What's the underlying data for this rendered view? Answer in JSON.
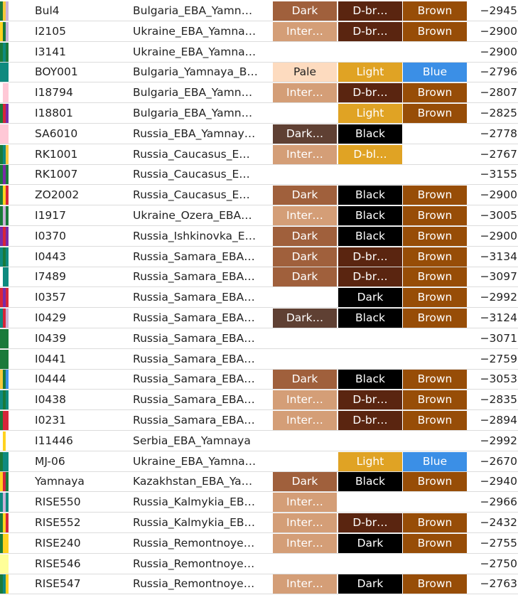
{
  "colors": {
    "Dark_skin": "#a0603c",
    "Inter": "#d49e77",
    "Pale": "#fddbbf",
    "Dark_very": "#5f4033",
    "D-br": "#5a2510",
    "Light": "#e0a324",
    "D-bl": "#e0a324",
    "Black": "#000000",
    "Dark_hair": "#000000",
    "Brown": "#974d07",
    "Blue": "#3b8fe6"
  },
  "rows": [
    {
      "id": "Bul4",
      "population": "Bulgaria_EBA_Yamn…",
      "skin": "Dark",
      "skin_color": "#a0603c",
      "hair": "D-br…",
      "hair_color": "#5a2510",
      "eye": "Brown",
      "eye_color": "#974d07",
      "date": "−2945",
      "strip": [
        "#1a7a3a",
        "#f7c83c",
        "#c9b1d8"
      ]
    },
    {
      "id": "I2105",
      "population": "Ukraine_EBA_Yamna…",
      "skin": "Inter…",
      "skin_color": "#d49e77",
      "hair": "D-br…",
      "hair_color": "#5a2510",
      "eye": "Brown",
      "eye_color": "#974d07",
      "date": "−2900",
      "strip": [
        "#ffd21f",
        "#1a7a3a",
        "#c9b1d8"
      ]
    },
    {
      "id": "I3141",
      "population": "Ukraine_EBA_Yamna…",
      "skin": "",
      "skin_color": "",
      "hair": "",
      "hair_color": "",
      "eye": "",
      "eye_color": "",
      "date": "−2900",
      "strip": [
        "#1a7a3a",
        "#0e8a7f",
        "#1a7a3a"
      ]
    },
    {
      "id": "BOY001",
      "population": "Bulgaria_Yamnaya_B…",
      "skin": "Pale",
      "skin_color": "#fddbbf",
      "hair": "Light",
      "hair_color": "#e0a324",
      "eye": "Blue",
      "eye_color": "#3b8fe6",
      "date": "−2796",
      "strip": [
        "#0e8a7f",
        "#0e8a7f",
        "#0e8a7f"
      ]
    },
    {
      "id": "I18794",
      "population": "Bulgaria_EBA_Yamn…",
      "skin": "Inter…",
      "skin_color": "#d49e77",
      "hair": "D-br…",
      "hair_color": "#5a2510",
      "eye": "Brown",
      "eye_color": "#974d07",
      "date": "−2807",
      "strip": [
        "#ffffff",
        "#ffc8d6",
        "#ffc8d6"
      ]
    },
    {
      "id": "I18801",
      "population": "Bulgaria_EBA_Yamn…",
      "skin": "",
      "skin_color": "",
      "hair": "Light",
      "hair_color": "#e0a324",
      "eye": "Brown",
      "eye_color": "#974d07",
      "date": "−2825",
      "strip": [
        "#1a7a3a",
        "#d6263a",
        "#7a2aa8"
      ]
    },
    {
      "id": "SA6010",
      "population": "Russia_EBA_Yamnay…",
      "skin": "Dark…",
      "skin_color": "#5f4033",
      "hair": "Black",
      "hair_color": "#000000",
      "eye": "",
      "eye_color": "",
      "date": "−2778",
      "strip": [
        "#ffc8d6",
        "#ffc8d6",
        "#ffc8d6"
      ]
    },
    {
      "id": "RK1001",
      "population": "Russia_Caucasus_E…",
      "skin": "Inter…",
      "skin_color": "#d49e77",
      "hair": "D-bl…",
      "hair_color": "#e0a324",
      "eye": "",
      "eye_color": "",
      "date": "−2767",
      "strip": [
        "#1a7a3a",
        "#0e8a7f",
        "#f7c83c"
      ]
    },
    {
      "id": "RK1007",
      "population": "Russia_Caucasus_E…",
      "skin": "",
      "skin_color": "",
      "hair": "",
      "hair_color": "",
      "eye": "",
      "eye_color": "",
      "date": "−3155",
      "strip": [
        "#1a7a3a",
        "#7a2aa8",
        "#1a7a3a"
      ]
    },
    {
      "id": "ZO2002",
      "population": "Russia_Caucasus_E…",
      "skin": "Dark",
      "skin_color": "#a0603c",
      "hair": "Black",
      "hair_color": "#000000",
      "eye": "Brown",
      "eye_color": "#974d07",
      "date": "−2900",
      "strip": [
        "#1a7a3a",
        "#ffd21f",
        "#d6263a"
      ]
    },
    {
      "id": "I1917",
      "population": "Ukraine_Ozera_EBA…",
      "skin": "Inter…",
      "skin_color": "#d49e77",
      "hair": "Black",
      "hair_color": "#000000",
      "eye": "Brown",
      "eye_color": "#974d07",
      "date": "−3005",
      "strip": [
        "#1a7a3a",
        "#c9b1d8",
        "#1a7a3a"
      ]
    },
    {
      "id": "I0370",
      "population": "Russia_Ishkinovka_E…",
      "skin": "Dark",
      "skin_color": "#a0603c",
      "hair": "Black",
      "hair_color": "#000000",
      "eye": "Brown",
      "eye_color": "#974d07",
      "date": "−2900",
      "strip": [
        "#7a2aa8",
        "#d6263a",
        "#7a2aa8"
      ]
    },
    {
      "id": "I0443",
      "population": "Russia_Samara_EBA…",
      "skin": "Dark",
      "skin_color": "#a0603c",
      "hair": "D-br…",
      "hair_color": "#5a2510",
      "eye": "Brown",
      "eye_color": "#974d07",
      "date": "−3134",
      "strip": [
        "#0e8a7f",
        "#1a7a3a",
        "#0e8a7f"
      ]
    },
    {
      "id": "I7489",
      "population": "Russia_Samara_EBA…",
      "skin": "Dark",
      "skin_color": "#a0603c",
      "hair": "D-br…",
      "hair_color": "#5a2510",
      "eye": "Brown",
      "eye_color": "#974d07",
      "date": "−3097",
      "strip": [
        "#ffffff",
        "#0e8a7f",
        "#0e8a7f"
      ]
    },
    {
      "id": "I0357",
      "population": "Russia_Samara_EBA…",
      "skin": "",
      "skin_color": "",
      "hair": "Dark",
      "hair_color": "#000000",
      "eye": "Brown",
      "eye_color": "#974d07",
      "date": "−2992",
      "strip": [
        "#d6263a",
        "#7a2aa8",
        "#d6263a"
      ]
    },
    {
      "id": "I0429",
      "population": "Russia_Samara_EBA…",
      "skin": "Dark…",
      "skin_color": "#5f4033",
      "hair": "Black",
      "hair_color": "#000000",
      "eye": "Brown",
      "eye_color": "#974d07",
      "date": "−3124",
      "strip": [
        "#0e8a7f",
        "#d6263a",
        "#c9b1d8"
      ]
    },
    {
      "id": "I0439",
      "population": "Russia_Samara_EBA…",
      "skin": "",
      "skin_color": "",
      "hair": "",
      "hair_color": "",
      "eye": "",
      "eye_color": "",
      "date": "−3071",
      "strip": [
        "#1a7a3a",
        "#1a7a3a",
        "#1a7a3a"
      ]
    },
    {
      "id": "I0441",
      "population": "Russia_Samara_EBA…",
      "skin": "",
      "skin_color": "",
      "hair": "",
      "hair_color": "",
      "eye": "",
      "eye_color": "",
      "date": "−2759",
      "strip": [
        "#1a7a3a",
        "#1a7a3a",
        "#1a7a3a"
      ]
    },
    {
      "id": "I0444",
      "population": "Russia_Samara_EBA…",
      "skin": "Dark",
      "skin_color": "#a0603c",
      "hair": "Black",
      "hair_color": "#000000",
      "eye": "Brown",
      "eye_color": "#974d07",
      "date": "−3053",
      "strip": [
        "#f7c83c",
        "#1a7a3a",
        "#3b8fe6"
      ]
    },
    {
      "id": "I0438",
      "population": "Russia_Samara_EBA…",
      "skin": "Inter…",
      "skin_color": "#d49e77",
      "hair": "D-br…",
      "hair_color": "#5a2510",
      "eye": "Brown",
      "eye_color": "#974d07",
      "date": "−2835",
      "strip": [
        "#0e8a7f",
        "#1a7a3a",
        "#0e8a7f"
      ]
    },
    {
      "id": "I0231",
      "population": "Russia_Samara_EBA…",
      "skin": "Inter…",
      "skin_color": "#d49e77",
      "hair": "D-br…",
      "hair_color": "#5a2510",
      "eye": "Brown",
      "eye_color": "#974d07",
      "date": "−2894",
      "strip": [
        "#1a7a3a",
        "#d6263a",
        "#d6263a"
      ]
    },
    {
      "id": "I11446",
      "population": "Serbia_EBA_Yamnaya",
      "skin": "",
      "skin_color": "",
      "hair": "",
      "hair_color": "",
      "eye": "",
      "eye_color": "",
      "date": "−2992",
      "strip": [
        "#ffffff",
        "#ffd21f",
        "#ffffff"
      ]
    },
    {
      "id": "MJ-06",
      "population": "Ukraine_EBA_Yamna…",
      "skin": "",
      "skin_color": "",
      "hair": "Light",
      "hair_color": "#e0a324",
      "eye": "Blue",
      "eye_color": "#3b8fe6",
      "date": "−2670",
      "strip": [
        "#1a7a3a",
        "#0e8a7f",
        "#0e8a7f"
      ]
    },
    {
      "id": "Yamnaya",
      "population": "Kazakhstan_EBA_Ya…",
      "skin": "Dark",
      "skin_color": "#a0603c",
      "hair": "Black",
      "hair_color": "#000000",
      "eye": "Brown",
      "eye_color": "#974d07",
      "date": "−2940",
      "strip": [
        "#ffd21f",
        "#d6263a",
        "#1a7a3a"
      ]
    },
    {
      "id": "RISE550",
      "population": "Russia_Kalmykia_EB…",
      "skin": "Inter…",
      "skin_color": "#d49e77",
      "hair": "",
      "hair_color": "",
      "eye": "",
      "eye_color": "",
      "date": "−2966",
      "strip": [
        "#0e8a7f",
        "#c9b1d8",
        "#0e8a7f"
      ]
    },
    {
      "id": "RISE552",
      "population": "Russia_Kalmykia_EB…",
      "skin": "Inter…",
      "skin_color": "#d49e77",
      "hair": "D-br…",
      "hair_color": "#5a2510",
      "eye": "Brown",
      "eye_color": "#974d07",
      "date": "−2432",
      "strip": [
        "#1a7a3a",
        "#ffd21f",
        "#d6263a"
      ]
    },
    {
      "id": "RISE240",
      "population": "Russia_Remontnoye…",
      "skin": "Inter…",
      "skin_color": "#d49e77",
      "hair": "Dark",
      "hair_color": "#000000",
      "eye": "Brown",
      "eye_color": "#974d07",
      "date": "−2755",
      "strip": [
        "#1a7a3a",
        "#ffd21f",
        "#ffd21f"
      ]
    },
    {
      "id": "RISE546",
      "population": "Russia_Remontnoye…",
      "skin": "",
      "skin_color": "",
      "hair": "",
      "hair_color": "",
      "eye": "",
      "eye_color": "",
      "date": "−2750",
      "strip": [
        "#ffff99",
        "#ffff99",
        "#ffff99"
      ]
    },
    {
      "id": "RISE547",
      "population": "Russia_Remontnoye…",
      "skin": "Inter…",
      "skin_color": "#d49e77",
      "hair": "Dark",
      "hair_color": "#000000",
      "eye": "Brown",
      "eye_color": "#974d07",
      "date": "−2763",
      "strip": [
        "#1a7a3a",
        "#0e8a7f",
        "#ffd21f"
      ]
    }
  ]
}
